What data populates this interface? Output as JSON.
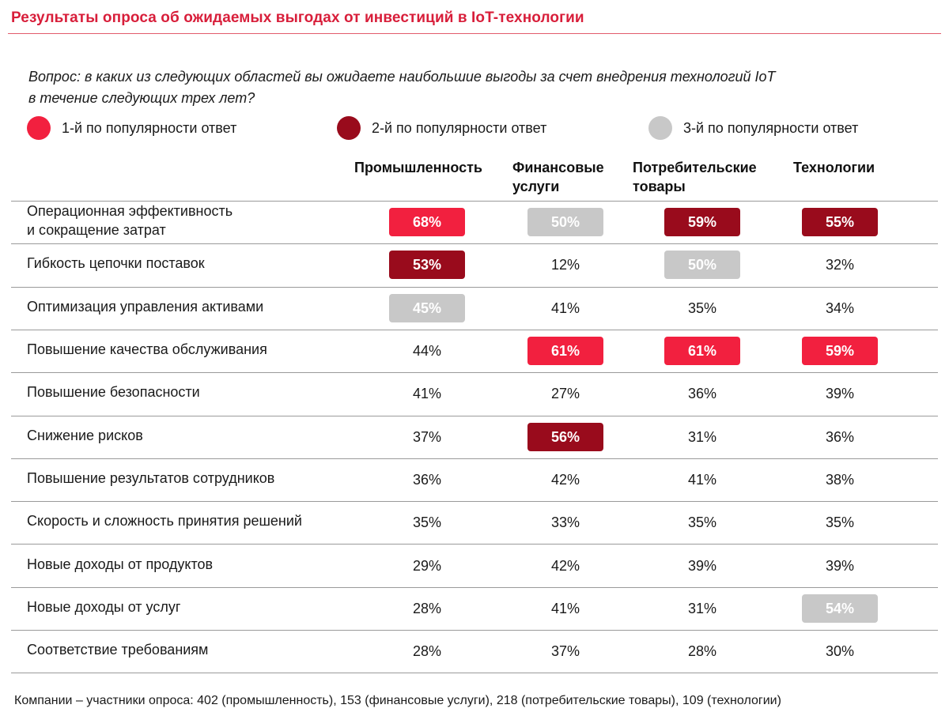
{
  "title": "Результаты опроса об ожидаемых выгодах от инвестиций в IoT-технологии",
  "question_line1": "Вопрос: в каких из следующих областей вы ожидаете наибольшие выгоды за счет внедрения технологий IoT",
  "question_line2": "в течение следующих трех лет?",
  "colors": {
    "rank1": "#f2203f",
    "rank2": "#990b1c",
    "rank3": "#c8c8c8",
    "title": "#d81e3a"
  },
  "legend": [
    {
      "rank": 1,
      "label": "1-й по популярности ответ",
      "color": "#f2203f"
    },
    {
      "rank": 2,
      "label": "2-й по популярности ответ",
      "color": "#990b1c"
    },
    {
      "rank": 3,
      "label": "3-й по популярности ответ",
      "color": "#c8c8c8"
    }
  ],
  "columns": [
    {
      "line1": "Промышленность",
      "line2": ""
    },
    {
      "line1": "Финансовые",
      "line2": "услуги"
    },
    {
      "line1": "Потребительские",
      "line2": "товары"
    },
    {
      "line1": "Технологии",
      "line2": ""
    }
  ],
  "chart_data": {
    "type": "table",
    "title": "Результаты опроса об ожидаемых выгодах от инвестиций в IoT-технологии",
    "columns": [
      "Промышленность",
      "Финансовые услуги",
      "Потребительские товары",
      "Технологии"
    ],
    "unit": "%",
    "rows": [
      {
        "label_lines": [
          "Операционная эффективность",
          "и сокращение затрат"
        ],
        "values": [
          68,
          50,
          59,
          55
        ],
        "ranks": [
          1,
          3,
          2,
          2
        ]
      },
      {
        "label_lines": [
          "Гибкость цепочки поставок"
        ],
        "values": [
          53,
          12,
          50,
          32
        ],
        "ranks": [
          2,
          0,
          3,
          0
        ]
      },
      {
        "label_lines": [
          "Оптимизация управления активами"
        ],
        "values": [
          45,
          41,
          35,
          34
        ],
        "ranks": [
          3,
          0,
          0,
          0
        ]
      },
      {
        "label_lines": [
          "Повышение качества обслуживания"
        ],
        "values": [
          44,
          61,
          61,
          59
        ],
        "ranks": [
          0,
          1,
          1,
          1
        ]
      },
      {
        "label_lines": [
          "Повышение безопасности"
        ],
        "values": [
          41,
          27,
          36,
          39
        ],
        "ranks": [
          0,
          0,
          0,
          0
        ]
      },
      {
        "label_lines": [
          "Снижение рисков"
        ],
        "values": [
          37,
          56,
          31,
          36
        ],
        "ranks": [
          0,
          2,
          0,
          0
        ]
      },
      {
        "label_lines": [
          "Повышение результатов сотрудников"
        ],
        "values": [
          36,
          42,
          41,
          38
        ],
        "ranks": [
          0,
          0,
          0,
          0
        ]
      },
      {
        "label_lines": [
          "Скорость и сложность принятия решений"
        ],
        "values": [
          35,
          33,
          35,
          35
        ],
        "ranks": [
          0,
          0,
          0,
          0
        ]
      },
      {
        "label_lines": [
          "Новые доходы от продуктов"
        ],
        "values": [
          29,
          42,
          39,
          39
        ],
        "ranks": [
          0,
          0,
          0,
          0
        ]
      },
      {
        "label_lines": [
          "Новые доходы от услуг"
        ],
        "values": [
          28,
          41,
          31,
          54
        ],
        "ranks": [
          0,
          0,
          0,
          3
        ]
      },
      {
        "label_lines": [
          "Соответствие требованиям"
        ],
        "values": [
          28,
          37,
          28,
          30
        ],
        "ranks": [
          0,
          0,
          0,
          0
        ]
      }
    ]
  },
  "footer": "Компании – участники опроса: 402 (промышленность), 153 (финансовые услуги), 218 (потребительские товары), 109 (технологии)"
}
